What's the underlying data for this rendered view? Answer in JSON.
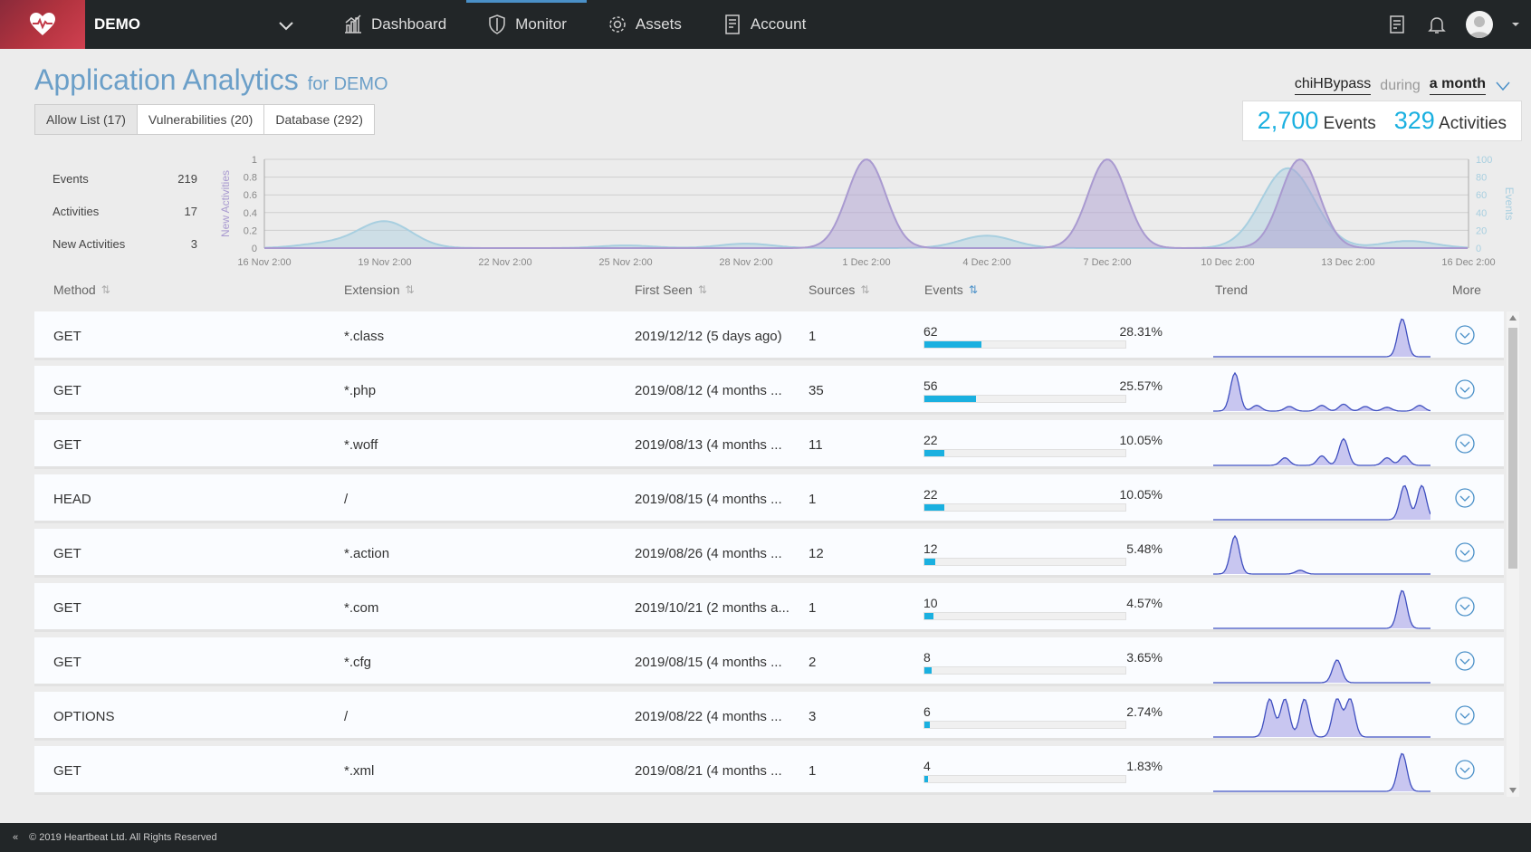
{
  "nav": {
    "brand": "DEMO",
    "items": [
      {
        "label": "Dashboard",
        "icon": "dashboard-icon",
        "active": false
      },
      {
        "label": "Monitor",
        "icon": "shield-icon",
        "active": true
      },
      {
        "label": "Assets",
        "icon": "gear-icon",
        "active": false
      },
      {
        "label": "Account",
        "icon": "document-icon",
        "active": false
      }
    ]
  },
  "header": {
    "title": "Application Analytics",
    "subtitle": "for DEMO",
    "tabs": [
      "Allow List (17)",
      "Vulnerabilities (20)",
      "Database (292)"
    ],
    "active_tab": 0,
    "filter": {
      "app": "chiHBypass",
      "during": "during",
      "period": "a month"
    },
    "totals": {
      "events_num": "2,700",
      "events_label": "Events",
      "activities_num": "329",
      "activities_label": "Activities"
    }
  },
  "summary": [
    {
      "label": "Events",
      "value": "219"
    },
    {
      "label": "Activities",
      "value": "17"
    },
    {
      "label": "New Activities",
      "value": "3"
    }
  ],
  "chart_data": {
    "type": "area",
    "x": [
      "16 Nov 2:00",
      "19 Nov 2:00",
      "22 Nov 2:00",
      "25 Nov 2:00",
      "28 Nov 2:00",
      "1 Dec 2:00",
      "4 Dec 2:00",
      "7 Dec 2:00",
      "10 Dec 2:00",
      "13 Dec 2:00",
      "16 Dec 2:00"
    ],
    "ylabel_left": "New Activities",
    "ylabel_right": "Events",
    "ylim_left": [
      0,
      1
    ],
    "ylim_right": [
      0,
      100
    ],
    "yticks_left": [
      "0",
      "0.2",
      "0.4",
      "0.6",
      "0.8",
      "1"
    ],
    "yticks_right": [
      "0",
      "20",
      "40",
      "60",
      "80",
      "100"
    ],
    "grid": true,
    "series": [
      {
        "name": "New Activities",
        "axis": "left",
        "color": "#a99ad0",
        "peaks": [
          [
            5,
            1
          ],
          [
            7,
            1
          ],
          [
            8.6,
            1
          ]
        ]
      },
      {
        "name": "Events",
        "axis": "right",
        "color": "#a8cfe0",
        "peaks": [
          [
            0.5,
            5
          ],
          [
            1,
            30
          ],
          [
            3,
            3
          ],
          [
            4,
            5
          ],
          [
            6,
            14
          ],
          [
            8.5,
            90
          ],
          [
            9.5,
            8
          ]
        ]
      }
    ]
  },
  "table": {
    "headers": {
      "method": "Method",
      "extension": "Extension",
      "first_seen": "First Seen",
      "sources": "Sources",
      "events": "Events",
      "trend": "Trend",
      "more": "More"
    },
    "rows": [
      {
        "method": "GET",
        "extension": "*.class",
        "first_seen": "2019/12/12 (5 days ago)",
        "sources": "1",
        "events": "62",
        "pct": "28.31%",
        "ratio": 0.2831,
        "trend": [
          [
            0.87,
            1
          ]
        ]
      },
      {
        "method": "GET",
        "extension": "*.php",
        "first_seen": "2019/08/12 (4 months ...",
        "sources": "35",
        "events": "56",
        "pct": "25.57%",
        "ratio": 0.2557,
        "trend": [
          [
            0.1,
            1
          ],
          [
            0.2,
            0.15
          ],
          [
            0.35,
            0.12
          ],
          [
            0.5,
            0.15
          ],
          [
            0.6,
            0.18
          ],
          [
            0.7,
            0.12
          ],
          [
            0.8,
            0.1
          ],
          [
            0.95,
            0.15
          ]
        ]
      },
      {
        "method": "GET",
        "extension": "*.woff",
        "first_seen": "2019/08/13 (4 months ...",
        "sources": "11",
        "events": "22",
        "pct": "10.05%",
        "ratio": 0.1005,
        "trend": [
          [
            0.33,
            0.2
          ],
          [
            0.5,
            0.25
          ],
          [
            0.6,
            0.7
          ],
          [
            0.8,
            0.2
          ],
          [
            0.88,
            0.25
          ]
        ]
      },
      {
        "method": "HEAD",
        "extension": "/",
        "first_seen": "2019/08/15 (4 months ...",
        "sources": "1",
        "events": "22",
        "pct": "10.05%",
        "ratio": 0.1005,
        "trend": [
          [
            0.88,
            0.9
          ],
          [
            0.96,
            0.9
          ]
        ]
      },
      {
        "method": "GET",
        "extension": "*.action",
        "first_seen": "2019/08/26 (4 months ...",
        "sources": "12",
        "events": "12",
        "pct": "5.48%",
        "ratio": 0.0548,
        "trend": [
          [
            0.1,
            1
          ],
          [
            0.4,
            0.1
          ]
        ]
      },
      {
        "method": "GET",
        "extension": "*.com",
        "first_seen": "2019/10/21 (2 months a...",
        "sources": "1",
        "events": "10",
        "pct": "4.57%",
        "ratio": 0.0457,
        "trend": [
          [
            0.87,
            1
          ]
        ]
      },
      {
        "method": "GET",
        "extension": "*.cfg",
        "first_seen": "2019/08/15 (4 months ...",
        "sources": "2",
        "events": "8",
        "pct": "3.65%",
        "ratio": 0.0365,
        "trend": [
          [
            0.57,
            0.6
          ]
        ]
      },
      {
        "method": "OPTIONS",
        "extension": "/",
        "first_seen": "2019/08/22 (4 months ...",
        "sources": "3",
        "events": "6",
        "pct": "2.74%",
        "ratio": 0.0274,
        "trend": [
          [
            0.26,
            1
          ],
          [
            0.33,
            1
          ],
          [
            0.42,
            1
          ],
          [
            0.57,
            1
          ],
          [
            0.63,
            1
          ]
        ]
      },
      {
        "method": "GET",
        "extension": "*.xml",
        "first_seen": "2019/08/21 (4 months ...",
        "sources": "1",
        "events": "4",
        "pct": "1.83%",
        "ratio": 0.0183,
        "trend": [
          [
            0.87,
            1
          ]
        ]
      }
    ]
  },
  "footer": {
    "text": "© 2019 Heartbeat Ltd. All Rights Reserved"
  },
  "colors": {
    "accent": "#1ab0e0",
    "title": "#6b9fc8",
    "topbar": "#222628",
    "trend_fill": "#c8c6f0",
    "trend_line": "#3f4fc0"
  }
}
